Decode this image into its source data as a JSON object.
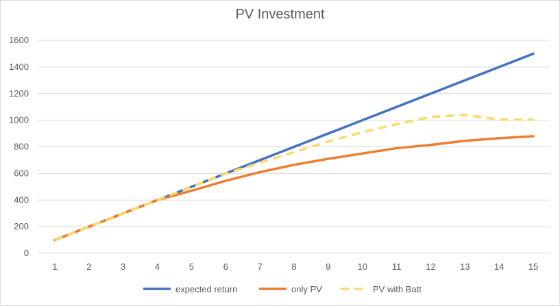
{
  "chart_data": {
    "type": "line",
    "title": "PV Investment",
    "xlabel": "",
    "ylabel": "",
    "categories": [
      "1",
      "2",
      "3",
      "4",
      "5",
      "6",
      "7",
      "8",
      "9",
      "10",
      "11",
      "12",
      "13",
      "14",
      "15"
    ],
    "ylim": [
      0,
      1600
    ],
    "yticks": [
      0,
      200,
      400,
      600,
      800,
      1000,
      1200,
      1400,
      1600
    ],
    "grid": "horizontal",
    "legend_position": "bottom",
    "series": [
      {
        "name": "expected return",
        "color": "#4472C4",
        "dash": "solid",
        "values": [
          100,
          200,
          300,
          400,
          500,
          600,
          700,
          800,
          900,
          1000,
          1100,
          1200,
          1300,
          1400,
          1500
        ]
      },
      {
        "name": "only PV",
        "color": "#ED7D31",
        "dash": "solid",
        "values": [
          100,
          200,
          300,
          400,
          470,
          545,
          610,
          665,
          710,
          750,
          790,
          815,
          845,
          865,
          880
        ]
      },
      {
        "name": "PV with Batt",
        "color": "#FFD966",
        "dash": "dashed",
        "values": [
          100,
          200,
          300,
          400,
          500,
          600,
          680,
          760,
          840,
          910,
          970,
          1025,
          1040,
          1005,
          1005
        ]
      }
    ]
  }
}
